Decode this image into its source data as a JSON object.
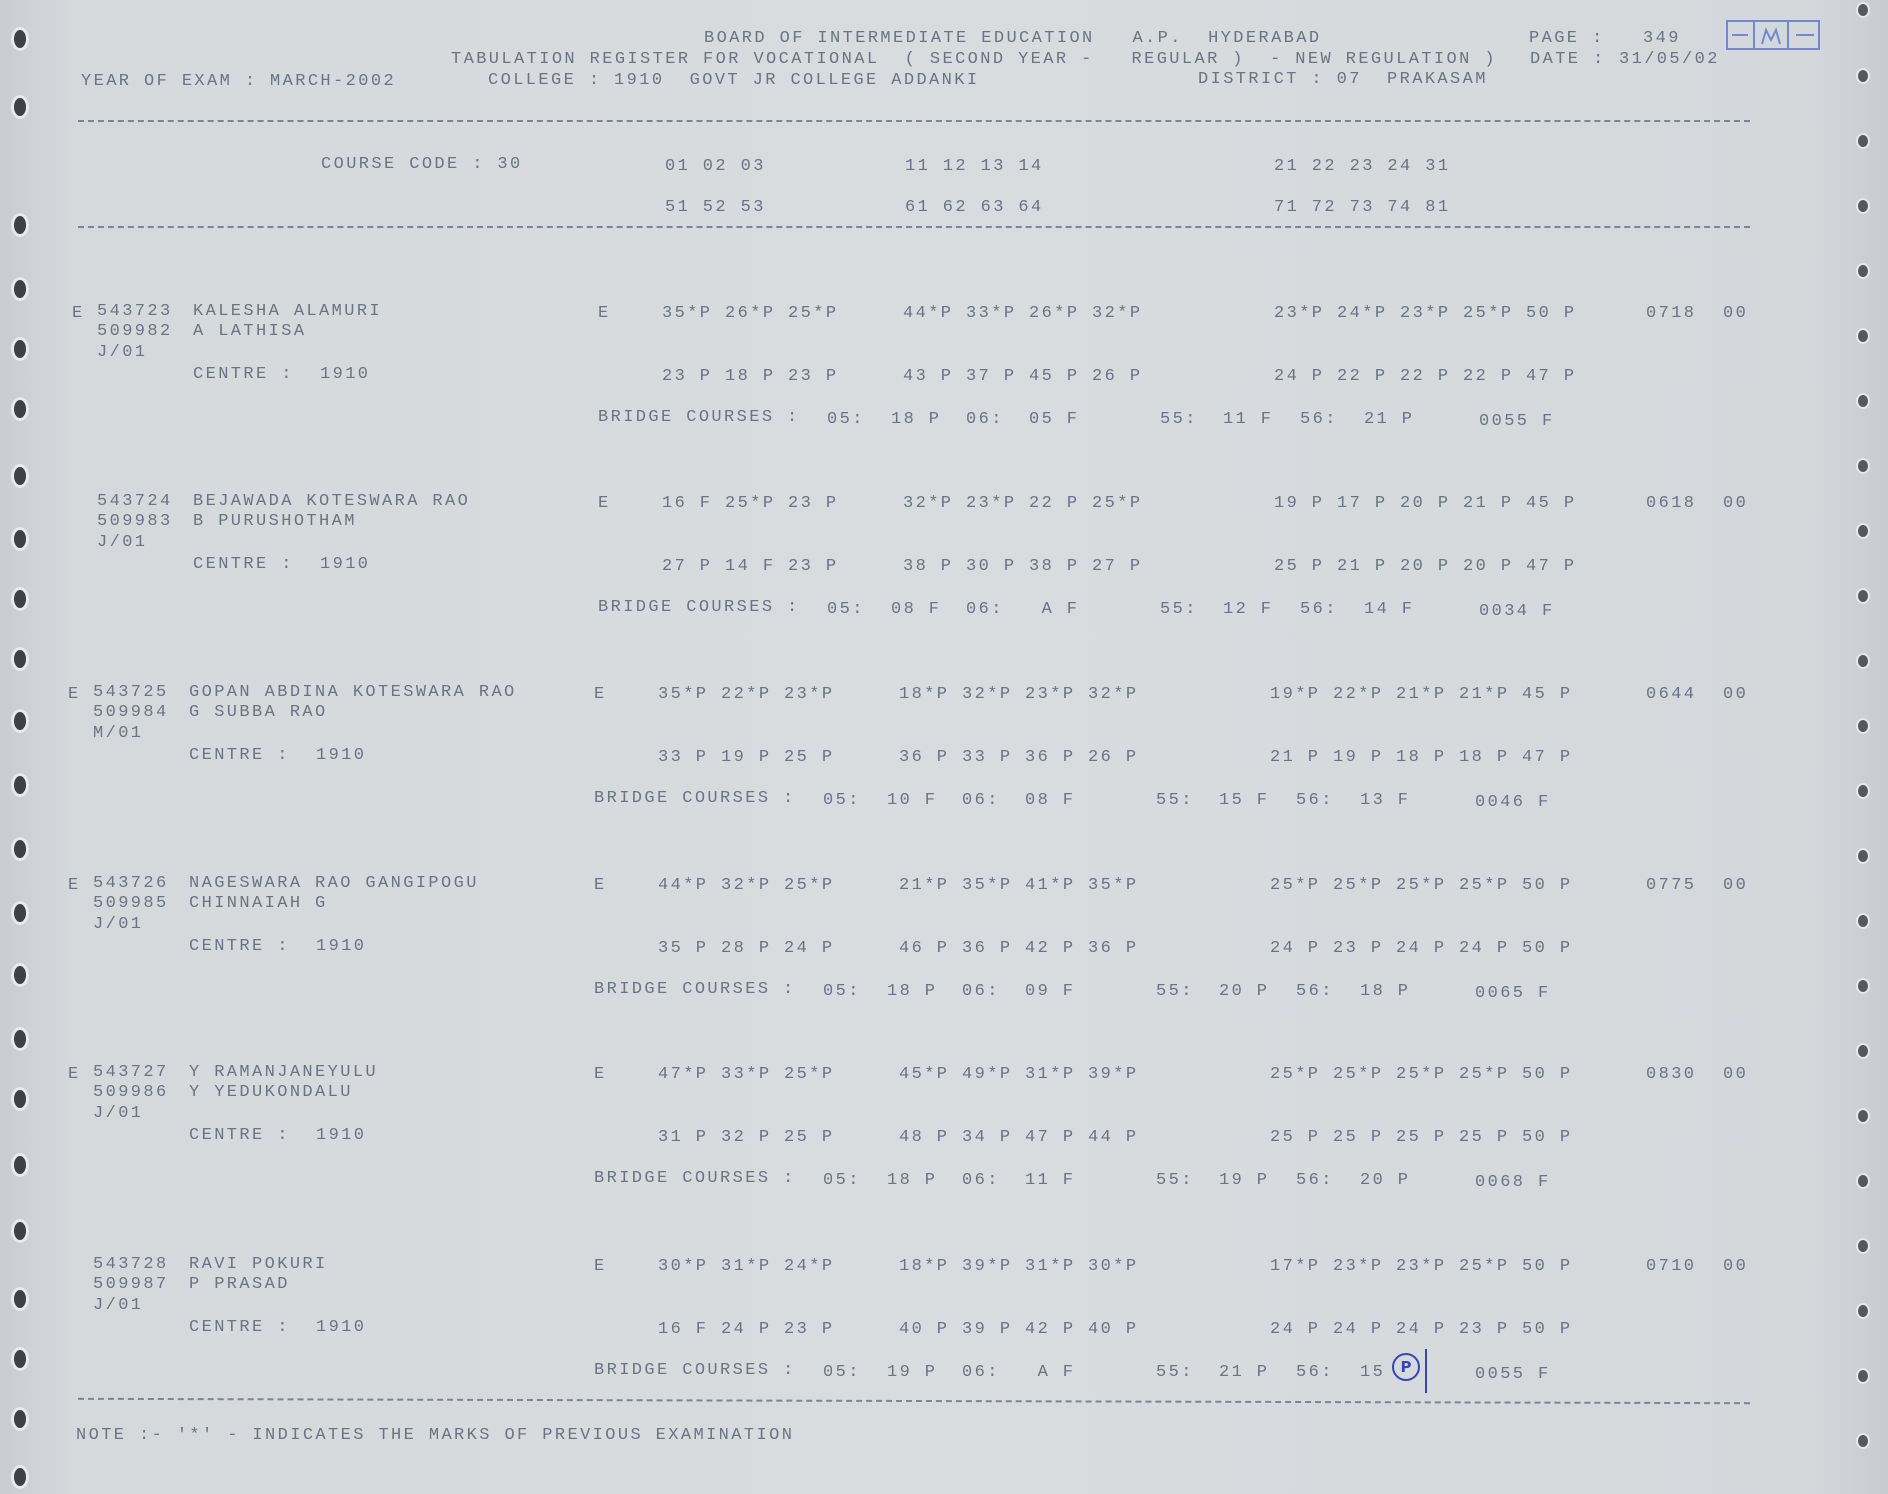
{
  "header": {
    "board": "BOARD OF INTERMEDIATE EDUCATION   A.P.  HYDERABAD",
    "page_label": "PAGE :",
    "page_number": "349",
    "register": "TABULATION REGISTER FOR VOCATIONAL  ( SECOND YEAR -   REGULAR )  - NEW REGULATION )",
    "date_label": "DATE :",
    "date": "31/05/02",
    "year_of_exam": "YEAR OF EXAM : MARCH-2002",
    "college": "COLLEGE : 1910  GOVT JR COLLEGE ADDANKI",
    "district": "DISTRICT : 07  PRAKASAM"
  },
  "course_code": "COURSE CODE : 30",
  "subject_codes_row1": [
    "01 02 03",
    "11 12 13 14",
    "21 22 23 24 31"
  ],
  "subject_codes_row2": [
    "51 52 53",
    "61 62 63 64",
    "71 72 73 74 81"
  ],
  "centre_label": "CENTRE :",
  "bridge_label": "BRIDGE COURSES :",
  "records": [
    {
      "flag": "E",
      "roll": "543723",
      "name": "KALESHA ALAMURI",
      "roll2": "509982",
      "parent": "A LATHISA",
      "group": "J/01",
      "centre": "1910",
      "medium": "E",
      "row1": [
        "35*P 26*P 25*P",
        "44*P 33*P 26*P 32*P",
        "23*P 24*P 23*P 25*P 50 P"
      ],
      "total": "0718",
      "code": "00",
      "row2": [
        "23 P 18 P 23 P",
        "43 P 37 P 45 P 26 P",
        "24 P 22 P 22 P 22 P 47 P"
      ],
      "bridge": [
        {
          "c": "05:",
          "m": "18 P"
        },
        {
          "c": "06:",
          "m": "05 F"
        },
        {
          "c": "55:",
          "m": "11 F"
        },
        {
          "c": "56:",
          "m": "21 P"
        }
      ],
      "bridge_total": "0055 F"
    },
    {
      "flag": "",
      "roll": "543724",
      "name": "BEJAWADA KOTESWARA RAO",
      "roll2": "509983",
      "parent": "B PURUSHOTHAM",
      "group": "J/01",
      "centre": "1910",
      "medium": "E",
      "row1": [
        "16 F 25*P 23 P",
        "32*P 23*P 22 P 25*P",
        "19 P 17 P 20 P 21 P 45 P"
      ],
      "total": "0618",
      "code": "00",
      "row2": [
        "27 P 14 F 23 P",
        "38 P 30 P 38 P 27 P",
        "25 P 21 P 20 P 20 P 47 P"
      ],
      "bridge": [
        {
          "c": "05:",
          "m": "08 F"
        },
        {
          "c": "06:",
          "m": " A F"
        },
        {
          "c": "55:",
          "m": "12 F"
        },
        {
          "c": "56:",
          "m": "14 F"
        }
      ],
      "bridge_total": "0034 F"
    },
    {
      "flag": "E",
      "roll": "543725",
      "name": "GOPAN ABDINA KOTESWARA RAO",
      "roll2": "509984",
      "parent": "G SUBBA RAO",
      "group": "M/01",
      "centre": "1910",
      "medium": "E",
      "row1": [
        "35*P 22*P 23*P",
        "18*P 32*P 23*P 32*P",
        "19*P 22*P 21*P 21*P 45 P"
      ],
      "total": "0644",
      "code": "00",
      "row2": [
        "33 P 19 P 25 P",
        "36 P 33 P 36 P 26 P",
        "21 P 19 P 18 P 18 P 47 P"
      ],
      "bridge": [
        {
          "c": "05:",
          "m": "10 F"
        },
        {
          "c": "06:",
          "m": "08 F"
        },
        {
          "c": "55:",
          "m": "15 F"
        },
        {
          "c": "56:",
          "m": "13 F"
        }
      ],
      "bridge_total": "0046 F"
    },
    {
      "flag": "E",
      "roll": "543726",
      "name": "NAGESWARA RAO GANGIPOGU",
      "roll2": "509985",
      "parent": "CHINNAIAH G",
      "group": "J/01",
      "centre": "1910",
      "medium": "E",
      "row1": [
        "44*P 32*P 25*P",
        "21*P 35*P 41*P 35*P",
        "25*P 25*P 25*P 25*P 50 P"
      ],
      "total": "0775",
      "code": "00",
      "row2": [
        "35 P 28 P 24 P",
        "46 P 36 P 42 P 36 P",
        "24 P 23 P 24 P 24 P 50 P"
      ],
      "bridge": [
        {
          "c": "05:",
          "m": "18 P"
        },
        {
          "c": "06:",
          "m": "09 F"
        },
        {
          "c": "55:",
          "m": "20 P"
        },
        {
          "c": "56:",
          "m": "18 P"
        }
      ],
      "bridge_total": "0065 F"
    },
    {
      "flag": "E",
      "roll": "543727",
      "name": "Y RAMANJANEYULU",
      "roll2": "509986",
      "parent": "Y YEDUKONDALU",
      "group": "J/01",
      "centre": "1910",
      "medium": "E",
      "row1": [
        "47*P 33*P 25*P",
        "45*P 49*P 31*P 39*P",
        "25*P 25*P 25*P 25*P 50 P"
      ],
      "total": "0830",
      "code": "00",
      "row2": [
        "31 P 32 P 25 P",
        "48 P 34 P 47 P 44 P",
        "25 P 25 P 25 P 25 P 50 P"
      ],
      "bridge": [
        {
          "c": "05:",
          "m": "18 P"
        },
        {
          "c": "06:",
          "m": "11 F"
        },
        {
          "c": "55:",
          "m": "19 P"
        },
        {
          "c": "56:",
          "m": "20 P"
        }
      ],
      "bridge_total": "0068 F"
    },
    {
      "flag": "",
      "roll": "543728",
      "name": "RAVI POKURI",
      "roll2": "509987",
      "parent": "P PRASAD",
      "group": "J/01",
      "centre": "1910",
      "medium": "E",
      "row1": [
        "30*P 31*P 24*P",
        "18*P 39*P 31*P 30*P",
        "17*P 23*P 23*P 25*P 50 P"
      ],
      "total": "0710",
      "code": "00",
      "row2": [
        "16 F 24 P 23 P",
        "40 P 39 P 42 P 40 P",
        "24 P 24 P 24 P 23 P 50 P"
      ],
      "bridge": [
        {
          "c": "05:",
          "m": "19 P"
        },
        {
          "c": "06:",
          "m": " A F"
        },
        {
          "c": "55:",
          "m": "21 P"
        },
        {
          "c": "56:",
          "m": "15"
        }
      ],
      "bridge_total": "0055 F",
      "handwritten": "P"
    }
  ],
  "note": "NOTE :- '*' - INDICATES THE MARKS OF PREVIOUS EXAMINATION",
  "colors": {
    "paper": "#d9dcdf",
    "print": "#6b7384",
    "ink": "#3347b8"
  }
}
